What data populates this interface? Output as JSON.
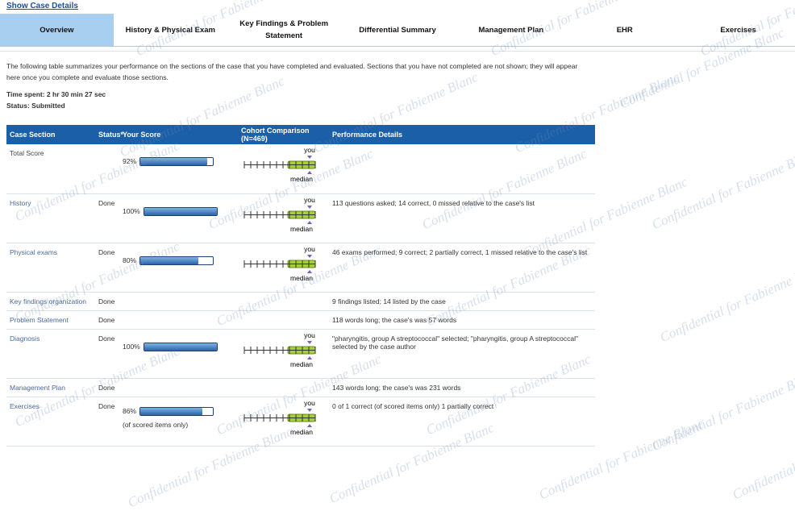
{
  "header": {
    "link": "Show Case Details"
  },
  "tabs": [
    "Overview",
    "History & Physical Exam",
    "Key Findings & Problem Statement",
    "Differential Summary",
    "Management Plan",
    "EHR",
    "Exercises"
  ],
  "active_tab": 0,
  "intro": "The following table summarizes your performance on the sections of the case that you have completed and evaluated. Sections that you have not completed are not shown; they will appear here once you complete and evaluate those sections.",
  "time_spent": "Time spent: 2 hr 30 min 27 sec",
  "status": "Status: Submitted",
  "table": {
    "columns": [
      "Case Section",
      "Status*",
      "Your Score",
      "Cohort Comparison (N=469)",
      "Performance Details"
    ],
    "cohort_you": "you",
    "cohort_median": "median",
    "rows": [
      {
        "section": "Total Score",
        "score": {
          "value": 92,
          "label": "92%"
        }
      },
      {
        "section": "History",
        "status": "Done",
        "score": {
          "value": 100,
          "label": "100%"
        },
        "details": "113 questions asked; 14 correct, 0 missed relative to the case's list"
      },
      {
        "section": "Physical exams",
        "status": "Done",
        "score": {
          "value": 80,
          "label": "80%"
        },
        "details": "46 exams performed; 9 correct; 2 partially correct, 1 missed relative to the case's list"
      },
      {
        "section": "Key findings organization",
        "status": "Done",
        "details": "9 findings listed; 14 listed by the case"
      },
      {
        "section": "Problem Statement",
        "status": "Done",
        "details": "118 words long; the case's was 57 words"
      },
      {
        "section": "Diagnosis",
        "status": "Done",
        "score": {
          "value": 100,
          "label": "100%"
        },
        "details": "\"pharyngitis, group A streptococcal\" selected; \"pharyngitis, group A streptococcal\" selected by the case author"
      },
      {
        "section": "Management Plan",
        "status": "Done",
        "details": "143 words long; the case's was 231 words"
      },
      {
        "section": "Exercises",
        "status": "Done",
        "score": {
          "value": 86,
          "label": "86%"
        },
        "note": "(of scored items only)",
        "details": "0 of 1 correct (of scored items only) 1 partially correct"
      }
    ]
  },
  "watermark": "Confidential for Fabienne Blanc"
}
